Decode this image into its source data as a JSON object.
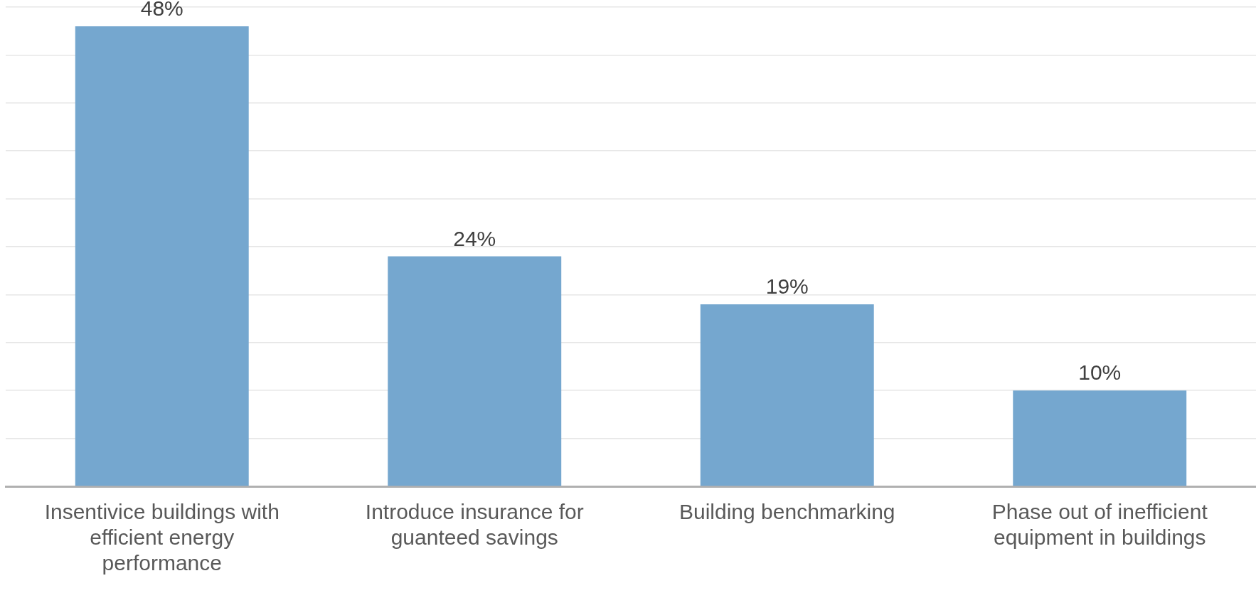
{
  "chart_data": {
    "type": "bar",
    "categories": [
      "Insentivice buildings with efficient energy performance",
      "Introduce insurance for guanteed savings",
      "Building benchmarking",
      "Phase out of inefficient equipment in buildings"
    ],
    "values": [
      48,
      24,
      19,
      10
    ],
    "value_labels": [
      "48%",
      "24%",
      "19%",
      "10%"
    ],
    "color": "#75a7cf",
    "ylim": [
      0,
      50
    ],
    "yticks": [
      {
        "value": 0,
        "label": null
      },
      {
        "value": 5,
        "label": null
      },
      {
        "value": 10,
        "label": null
      },
      {
        "value": 15,
        "label": null
      },
      {
        "value": 20,
        "label": null
      },
      {
        "value": 25,
        "label": null
      },
      {
        "value": 30,
        "label": null
      },
      {
        "value": 35,
        "label": null
      },
      {
        "value": 40,
        "label": null
      },
      {
        "value": 45,
        "label": null
      },
      {
        "value": 50,
        "label": null
      }
    ],
    "grid": "y",
    "tick_labels": "x",
    "legend": false
  }
}
